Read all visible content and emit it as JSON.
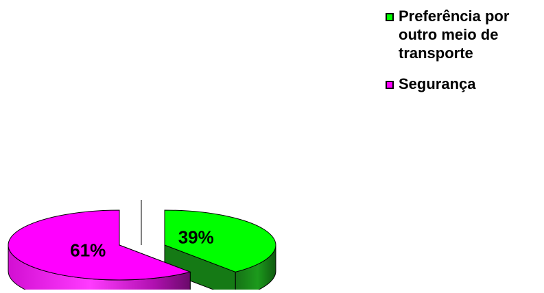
{
  "chart_data": {
    "type": "pie",
    "style": "3d-exploded",
    "slices": [
      {
        "label": "Preferência por outro meio de transporte",
        "value": 39,
        "data_label": "39%",
        "color": "#00ff00",
        "side_color": "#157a15"
      },
      {
        "label": "Segurança",
        "value": 61,
        "data_label": "61%",
        "color": "#ff00ff",
        "side_color": "#7a0a7a"
      }
    ],
    "legend_position": "top-right"
  },
  "legend": {
    "items": [
      {
        "label": "Preferência por outro meio de transporte",
        "color": "#00ff00"
      },
      {
        "label": "Segurança",
        "color": "#ff00ff"
      }
    ]
  }
}
